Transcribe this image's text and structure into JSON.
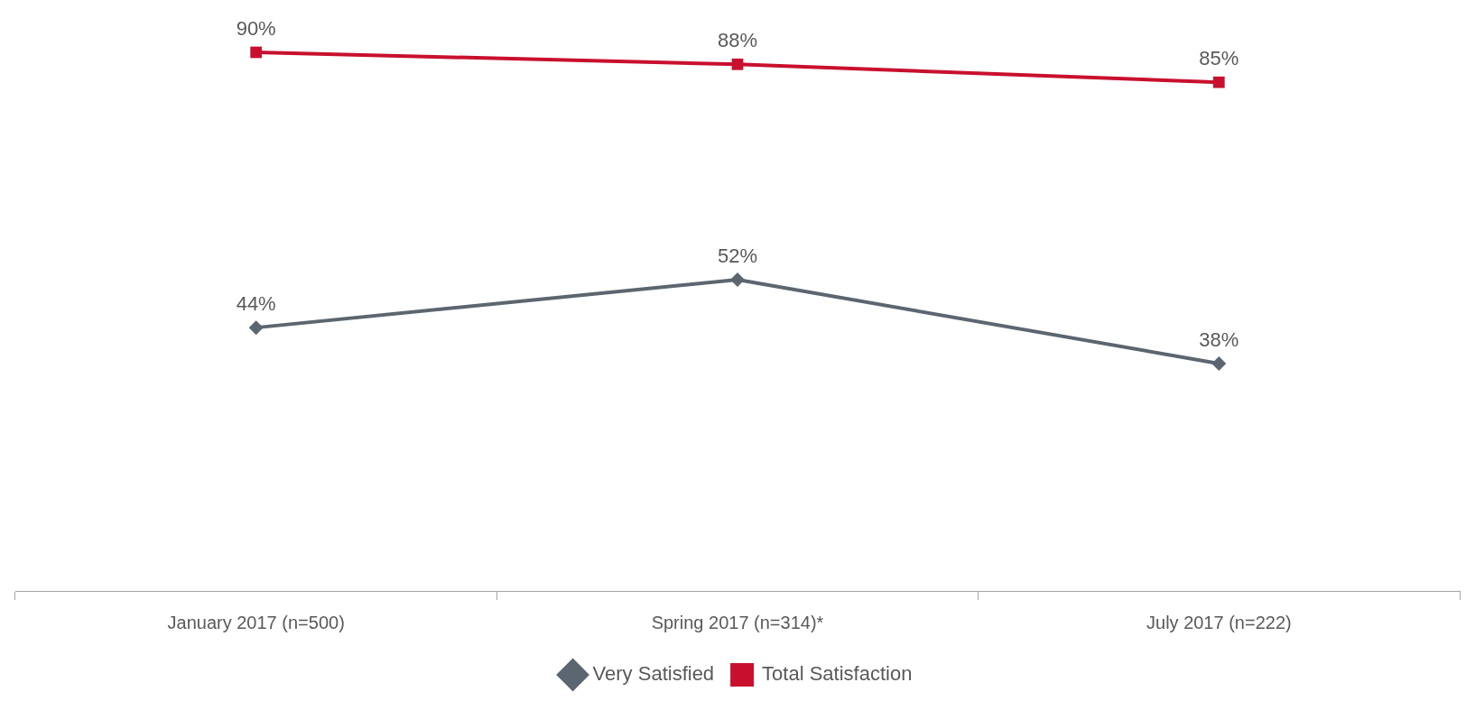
{
  "chart_data": {
    "type": "line",
    "categories": [
      "January 2017 (n=500)",
      "Spring 2017 (n=314)*",
      "July 2017 (n=222)"
    ],
    "series": [
      {
        "name": "Very Satisfied",
        "color": "#5b6670",
        "values": [
          44,
          52,
          38
        ],
        "value_labels": [
          "44%",
          "52%",
          "38%"
        ],
        "marker": "diamond"
      },
      {
        "name": "Total Satisfaction",
        "color": "#c8102e",
        "values": [
          90,
          88,
          85
        ],
        "value_labels": [
          "90%",
          "88%",
          "85%"
        ],
        "marker": "square"
      }
    ],
    "grid": false,
    "legend": "bottom",
    "tick_labels": "x"
  }
}
